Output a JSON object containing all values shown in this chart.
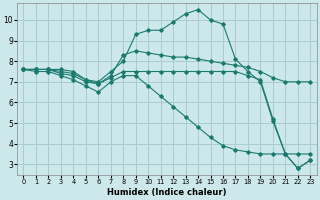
{
  "xlabel": "Humidex (Indice chaleur)",
  "bg_color": "#cce8ea",
  "grid_color": "#aaccce",
  "line_color": "#1a7a6e",
  "xlim": [
    -0.5,
    23.5
  ],
  "ylim": [
    2.5,
    10.8
  ],
  "yticks": [
    3,
    4,
    5,
    6,
    7,
    8,
    9,
    10
  ],
  "xticks": [
    0,
    1,
    2,
    3,
    4,
    5,
    6,
    7,
    8,
    9,
    10,
    11,
    12,
    13,
    14,
    15,
    16,
    17,
    18,
    19,
    20,
    21,
    22,
    23
  ],
  "lines": [
    {
      "x": [
        0,
        1,
        2,
        3,
        4,
        5,
        6,
        7,
        8,
        9,
        10,
        11,
        12,
        13,
        14,
        15,
        16,
        17,
        18,
        19,
        20,
        21,
        22,
        23
      ],
      "y": [
        7.6,
        7.6,
        7.6,
        7.6,
        7.5,
        7.1,
        7.0,
        7.5,
        8.0,
        9.3,
        9.5,
        9.5,
        9.9,
        10.3,
        10.5,
        10.0,
        9.8,
        8.1,
        7.5,
        7.0,
        5.1,
        3.5,
        2.8,
        3.2
      ]
    },
    {
      "x": [
        0,
        1,
        2,
        3,
        4,
        5,
        6,
        7,
        8,
        9,
        10,
        11,
        12,
        13,
        14,
        15,
        16,
        17,
        18,
        19,
        20,
        21,
        22,
        23
      ],
      "y": [
        7.6,
        7.6,
        7.6,
        7.5,
        7.4,
        7.1,
        6.9,
        7.3,
        8.3,
        8.5,
        8.4,
        8.3,
        8.2,
        8.2,
        8.1,
        8.0,
        7.9,
        7.8,
        7.7,
        7.5,
        7.2,
        7.0,
        7.0,
        7.0
      ]
    },
    {
      "x": [
        0,
        1,
        2,
        3,
        4,
        5,
        6,
        7,
        8,
        9,
        10,
        11,
        12,
        13,
        14,
        15,
        16,
        17,
        18,
        19,
        20,
        21,
        22,
        23
      ],
      "y": [
        7.6,
        7.6,
        7.6,
        7.4,
        7.3,
        7.0,
        6.9,
        7.2,
        7.5,
        7.5,
        7.5,
        7.5,
        7.5,
        7.5,
        7.5,
        7.5,
        7.5,
        7.5,
        7.3,
        7.1,
        5.2,
        3.5,
        2.8,
        3.2
      ]
    },
    {
      "x": [
        0,
        1,
        2,
        3,
        4,
        5,
        6,
        7,
        8,
        9,
        10,
        11,
        12,
        13,
        14,
        15,
        16,
        17,
        18,
        19,
        20,
        21,
        22,
        23
      ],
      "y": [
        7.6,
        7.5,
        7.5,
        7.3,
        7.1,
        6.8,
        6.5,
        7.0,
        7.3,
        7.3,
        6.8,
        6.3,
        5.8,
        5.3,
        4.8,
        4.3,
        3.9,
        3.7,
        3.6,
        3.5,
        3.5,
        3.5,
        3.5,
        3.5
      ]
    }
  ]
}
